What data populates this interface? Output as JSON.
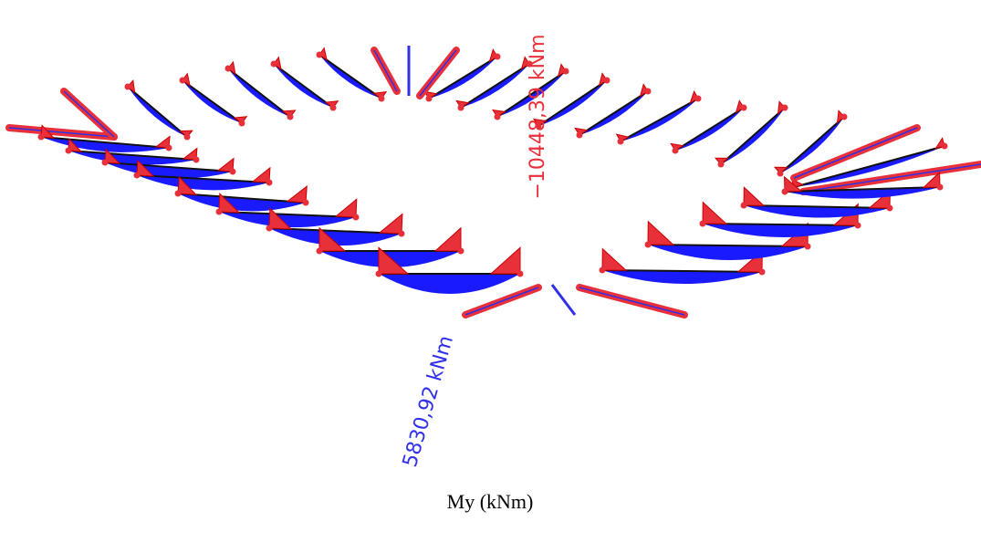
{
  "annotations": {
    "max_negative": "−10448,39 kNm",
    "max_positive": "5830,92 kNm"
  },
  "caption": "My (kNm)"
}
